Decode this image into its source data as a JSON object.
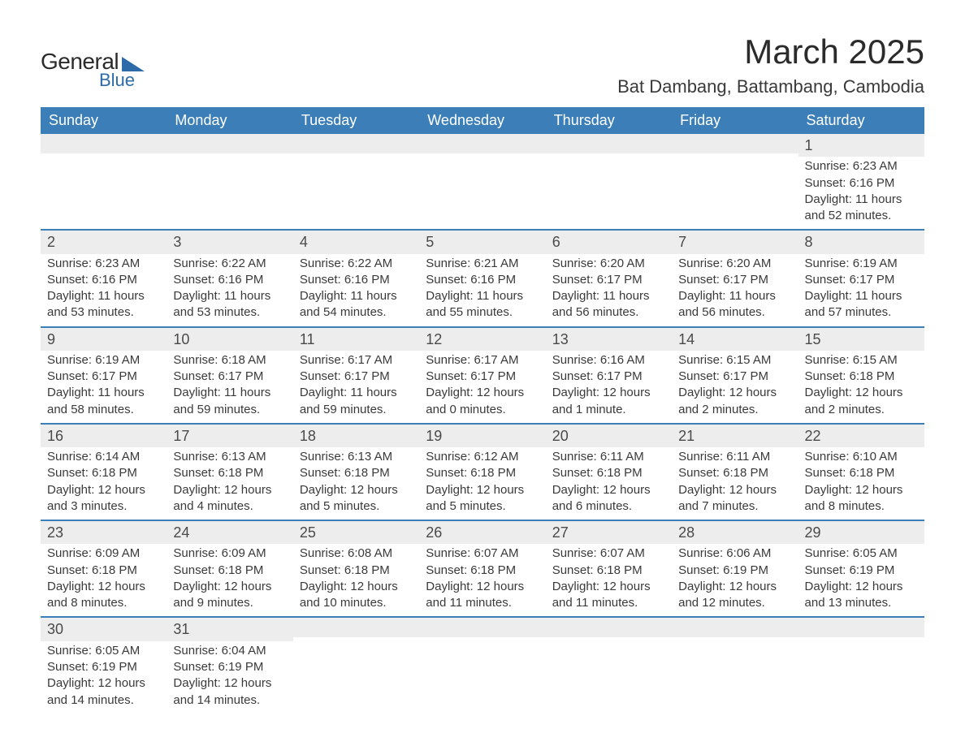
{
  "brand": {
    "name_main": "General",
    "name_sub": "Blue",
    "accent_color": "#2d6aa8"
  },
  "header": {
    "month_title": "March 2025",
    "location": "Bat Dambang, Battambang, Cambodia"
  },
  "calendar": {
    "header_bg": "#3c7fb8",
    "header_fg": "#ffffff",
    "daynum_bg": "#ededed",
    "border_color": "#3c7fb8",
    "text_color": "#3a3a3a",
    "day_headers": [
      "Sunday",
      "Monday",
      "Tuesday",
      "Wednesday",
      "Thursday",
      "Friday",
      "Saturday"
    ],
    "weeks": [
      [
        {
          "day": "",
          "sunrise": "",
          "sunset": "",
          "daylight": ""
        },
        {
          "day": "",
          "sunrise": "",
          "sunset": "",
          "daylight": ""
        },
        {
          "day": "",
          "sunrise": "",
          "sunset": "",
          "daylight": ""
        },
        {
          "day": "",
          "sunrise": "",
          "sunset": "",
          "daylight": ""
        },
        {
          "day": "",
          "sunrise": "",
          "sunset": "",
          "daylight": ""
        },
        {
          "day": "",
          "sunrise": "",
          "sunset": "",
          "daylight": ""
        },
        {
          "day": "1",
          "sunrise": "Sunrise: 6:23 AM",
          "sunset": "Sunset: 6:16 PM",
          "daylight": "Daylight: 11 hours and 52 minutes."
        }
      ],
      [
        {
          "day": "2",
          "sunrise": "Sunrise: 6:23 AM",
          "sunset": "Sunset: 6:16 PM",
          "daylight": "Daylight: 11 hours and 53 minutes."
        },
        {
          "day": "3",
          "sunrise": "Sunrise: 6:22 AM",
          "sunset": "Sunset: 6:16 PM",
          "daylight": "Daylight: 11 hours and 53 minutes."
        },
        {
          "day": "4",
          "sunrise": "Sunrise: 6:22 AM",
          "sunset": "Sunset: 6:16 PM",
          "daylight": "Daylight: 11 hours and 54 minutes."
        },
        {
          "day": "5",
          "sunrise": "Sunrise: 6:21 AM",
          "sunset": "Sunset: 6:16 PM",
          "daylight": "Daylight: 11 hours and 55 minutes."
        },
        {
          "day": "6",
          "sunrise": "Sunrise: 6:20 AM",
          "sunset": "Sunset: 6:17 PM",
          "daylight": "Daylight: 11 hours and 56 minutes."
        },
        {
          "day": "7",
          "sunrise": "Sunrise: 6:20 AM",
          "sunset": "Sunset: 6:17 PM",
          "daylight": "Daylight: 11 hours and 56 minutes."
        },
        {
          "day": "8",
          "sunrise": "Sunrise: 6:19 AM",
          "sunset": "Sunset: 6:17 PM",
          "daylight": "Daylight: 11 hours and 57 minutes."
        }
      ],
      [
        {
          "day": "9",
          "sunrise": "Sunrise: 6:19 AM",
          "sunset": "Sunset: 6:17 PM",
          "daylight": "Daylight: 11 hours and 58 minutes."
        },
        {
          "day": "10",
          "sunrise": "Sunrise: 6:18 AM",
          "sunset": "Sunset: 6:17 PM",
          "daylight": "Daylight: 11 hours and 59 minutes."
        },
        {
          "day": "11",
          "sunrise": "Sunrise: 6:17 AM",
          "sunset": "Sunset: 6:17 PM",
          "daylight": "Daylight: 11 hours and 59 minutes."
        },
        {
          "day": "12",
          "sunrise": "Sunrise: 6:17 AM",
          "sunset": "Sunset: 6:17 PM",
          "daylight": "Daylight: 12 hours and 0 minutes."
        },
        {
          "day": "13",
          "sunrise": "Sunrise: 6:16 AM",
          "sunset": "Sunset: 6:17 PM",
          "daylight": "Daylight: 12 hours and 1 minute."
        },
        {
          "day": "14",
          "sunrise": "Sunrise: 6:15 AM",
          "sunset": "Sunset: 6:17 PM",
          "daylight": "Daylight: 12 hours and 2 minutes."
        },
        {
          "day": "15",
          "sunrise": "Sunrise: 6:15 AM",
          "sunset": "Sunset: 6:18 PM",
          "daylight": "Daylight: 12 hours and 2 minutes."
        }
      ],
      [
        {
          "day": "16",
          "sunrise": "Sunrise: 6:14 AM",
          "sunset": "Sunset: 6:18 PM",
          "daylight": "Daylight: 12 hours and 3 minutes."
        },
        {
          "day": "17",
          "sunrise": "Sunrise: 6:13 AM",
          "sunset": "Sunset: 6:18 PM",
          "daylight": "Daylight: 12 hours and 4 minutes."
        },
        {
          "day": "18",
          "sunrise": "Sunrise: 6:13 AM",
          "sunset": "Sunset: 6:18 PM",
          "daylight": "Daylight: 12 hours and 5 minutes."
        },
        {
          "day": "19",
          "sunrise": "Sunrise: 6:12 AM",
          "sunset": "Sunset: 6:18 PM",
          "daylight": "Daylight: 12 hours and 5 minutes."
        },
        {
          "day": "20",
          "sunrise": "Sunrise: 6:11 AM",
          "sunset": "Sunset: 6:18 PM",
          "daylight": "Daylight: 12 hours and 6 minutes."
        },
        {
          "day": "21",
          "sunrise": "Sunrise: 6:11 AM",
          "sunset": "Sunset: 6:18 PM",
          "daylight": "Daylight: 12 hours and 7 minutes."
        },
        {
          "day": "22",
          "sunrise": "Sunrise: 6:10 AM",
          "sunset": "Sunset: 6:18 PM",
          "daylight": "Daylight: 12 hours and 8 minutes."
        }
      ],
      [
        {
          "day": "23",
          "sunrise": "Sunrise: 6:09 AM",
          "sunset": "Sunset: 6:18 PM",
          "daylight": "Daylight: 12 hours and 8 minutes."
        },
        {
          "day": "24",
          "sunrise": "Sunrise: 6:09 AM",
          "sunset": "Sunset: 6:18 PM",
          "daylight": "Daylight: 12 hours and 9 minutes."
        },
        {
          "day": "25",
          "sunrise": "Sunrise: 6:08 AM",
          "sunset": "Sunset: 6:18 PM",
          "daylight": "Daylight: 12 hours and 10 minutes."
        },
        {
          "day": "26",
          "sunrise": "Sunrise: 6:07 AM",
          "sunset": "Sunset: 6:18 PM",
          "daylight": "Daylight: 12 hours and 11 minutes."
        },
        {
          "day": "27",
          "sunrise": "Sunrise: 6:07 AM",
          "sunset": "Sunset: 6:18 PM",
          "daylight": "Daylight: 12 hours and 11 minutes."
        },
        {
          "day": "28",
          "sunrise": "Sunrise: 6:06 AM",
          "sunset": "Sunset: 6:19 PM",
          "daylight": "Daylight: 12 hours and 12 minutes."
        },
        {
          "day": "29",
          "sunrise": "Sunrise: 6:05 AM",
          "sunset": "Sunset: 6:19 PM",
          "daylight": "Daylight: 12 hours and 13 minutes."
        }
      ],
      [
        {
          "day": "30",
          "sunrise": "Sunrise: 6:05 AM",
          "sunset": "Sunset: 6:19 PM",
          "daylight": "Daylight: 12 hours and 14 minutes."
        },
        {
          "day": "31",
          "sunrise": "Sunrise: 6:04 AM",
          "sunset": "Sunset: 6:19 PM",
          "daylight": "Daylight: 12 hours and 14 minutes."
        },
        {
          "day": "",
          "sunrise": "",
          "sunset": "",
          "daylight": ""
        },
        {
          "day": "",
          "sunrise": "",
          "sunset": "",
          "daylight": ""
        },
        {
          "day": "",
          "sunrise": "",
          "sunset": "",
          "daylight": ""
        },
        {
          "day": "",
          "sunrise": "",
          "sunset": "",
          "daylight": ""
        },
        {
          "day": "",
          "sunrise": "",
          "sunset": "",
          "daylight": ""
        }
      ]
    ]
  }
}
